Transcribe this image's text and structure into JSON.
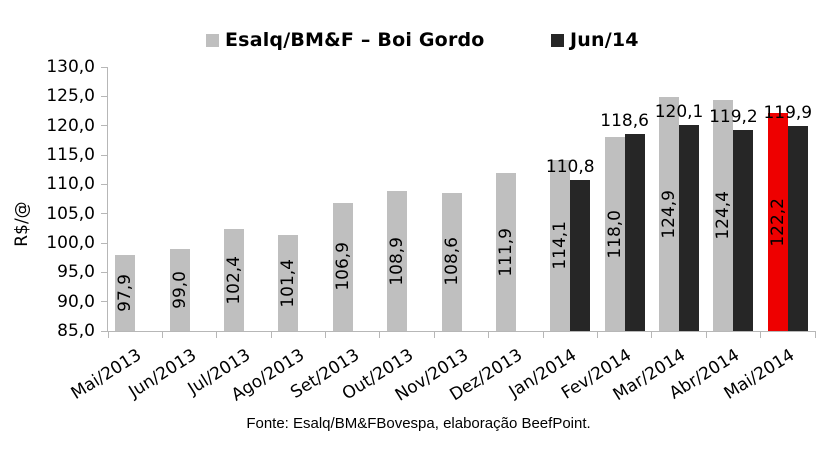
{
  "footer": {
    "source_text": "Fonte: Esalq/BM&FBovespa, elaboração BeefPoint."
  },
  "chart_data": {
    "type": "bar",
    "title": "",
    "xlabel": "",
    "ylabel": "R$/@",
    "ylim": [
      85,
      130
    ],
    "grid": false,
    "legend_position": "top",
    "categories": [
      "Mai/2013",
      "Jun/2013",
      "Jul/2013",
      "Ago/2013",
      "Set/2013",
      "Out/2013",
      "Nov/2013",
      "Dez/2013",
      "Jan/2014",
      "Fev/2014",
      "Mar/2014",
      "Abr/2014",
      "Mai/2014"
    ],
    "yticks": [
      {
        "value": 85,
        "label": "85,0"
      },
      {
        "value": 90,
        "label": "90,0"
      },
      {
        "value": 95,
        "label": "95,0"
      },
      {
        "value": 100,
        "label": "100,0"
      },
      {
        "value": 105,
        "label": "105,0"
      },
      {
        "value": 110,
        "label": "110,0"
      },
      {
        "value": 115,
        "label": "115,0"
      },
      {
        "value": 120,
        "label": "120,0"
      },
      {
        "value": 125,
        "label": "125,0"
      },
      {
        "value": 130,
        "label": "130,0"
      }
    ],
    "series": [
      {
        "name": "Esalq/BM&F – Boi Gordo",
        "color": "#bfbfbf",
        "label_placement": "inside-vertical",
        "values": [
          97.9,
          99.0,
          102.4,
          101.4,
          106.9,
          108.9,
          108.6,
          111.9,
          114.1,
          118.0,
          124.9,
          124.4,
          122.2
        ],
        "labels": [
          "97,9",
          "99,0",
          "102,4",
          "101,4",
          "106,9",
          "108,9",
          "108,6",
          "111,9",
          "114,1",
          "118,0",
          "124,9",
          "124,4",
          "122,2"
        ]
      },
      {
        "name": "Jun/14",
        "color": "#262626",
        "label_placement": "above",
        "values": [
          null,
          null,
          null,
          null,
          null,
          null,
          null,
          null,
          110.8,
          118.6,
          120.1,
          119.2,
          119.9
        ],
        "labels": [
          null,
          null,
          null,
          null,
          null,
          null,
          null,
          null,
          "110,8",
          "118,6",
          "120,1",
          "119,2",
          "119,9"
        ]
      }
    ],
    "highlight": {
      "category_index": 12,
      "series_index": 0,
      "color": "#ee0000"
    },
    "colors": {
      "axis": "#b7b7b7",
      "text": "#000000",
      "background": "#ffffff"
    }
  }
}
